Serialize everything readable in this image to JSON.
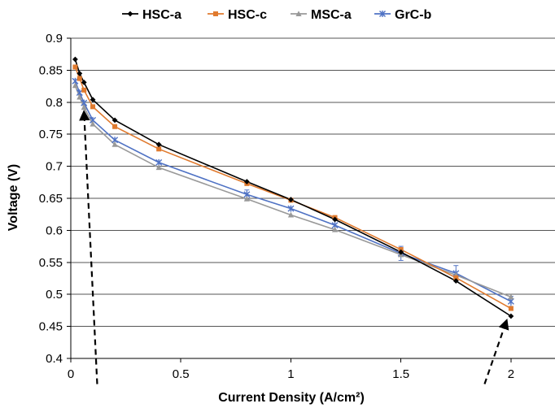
{
  "chart_data": {
    "type": "line",
    "xlabel": "Current Density (A/cm²)",
    "ylabel": "Voltage (V)",
    "xlim": [
      0,
      2.2
    ],
    "ylim": [
      0.4,
      0.9
    ],
    "x_ticks": [
      0,
      0.5,
      1,
      1.5,
      2
    ],
    "x_tick_labels": [
      "0",
      "0.5",
      "1",
      "1.5",
      "2"
    ],
    "y_ticks": [
      0.4,
      0.45,
      0.5,
      0.55,
      0.6,
      0.65,
      0.7,
      0.75,
      0.8,
      0.85,
      0.9
    ],
    "y_tick_labels": [
      "0.4",
      "0.45",
      "0.5",
      "0.55",
      "0.6",
      "0.65",
      "0.7",
      "0.75",
      "0.8",
      "0.85",
      "0.9"
    ],
    "grid": "horizontal",
    "legend_position": "top",
    "x": [
      0.02,
      0.04,
      0.06,
      0.1,
      0.2,
      0.4,
      0.8,
      1.0,
      1.2,
      1.5,
      1.75,
      2.0
    ],
    "series": [
      {
        "name": "HSC-a",
        "color": "#000000",
        "marker": "diamond",
        "values": [
          0.867,
          0.845,
          0.831,
          0.804,
          0.772,
          0.734,
          0.676,
          0.648,
          0.617,
          0.566,
          0.521,
          0.466
        ]
      },
      {
        "name": "HSC-c",
        "color": "#e07a2e",
        "marker": "square",
        "values": [
          0.855,
          0.837,
          0.819,
          0.793,
          0.762,
          0.727,
          0.673,
          0.647,
          0.62,
          0.57,
          0.526,
          0.478
        ]
      },
      {
        "name": "MSC-a",
        "color": "#999999",
        "marker": "triangle",
        "values": [
          0.826,
          0.808,
          0.792,
          0.766,
          0.734,
          0.698,
          0.649,
          0.624,
          0.601,
          0.562,
          0.53,
          0.496
        ]
      },
      {
        "name": "GrC-b",
        "color": "#4f72c4",
        "marker": "star",
        "values": [
          0.833,
          0.815,
          0.799,
          0.772,
          0.741,
          0.706,
          0.656,
          0.634,
          0.608,
          0.564,
          0.533,
          0.489
        ]
      }
    ],
    "error_bars": [
      {
        "series": "GrC-b",
        "x": 0.8,
        "err": 0.007
      },
      {
        "series": "GrC-b",
        "x": 1.5,
        "err": 0.011
      },
      {
        "series": "GrC-b",
        "x": 1.75,
        "err": 0.012
      },
      {
        "series": "GrC-b",
        "x": 2.0,
        "err": 0.008
      }
    ],
    "annotations": [
      {
        "type": "dashed-arrow",
        "from": [
          0.12,
          0.36
        ],
        "to": [
          0.06,
          0.785
        ]
      },
      {
        "type": "dashed-arrow",
        "from": [
          1.88,
          0.36
        ],
        "to": [
          1.98,
          0.459
        ]
      }
    ]
  }
}
